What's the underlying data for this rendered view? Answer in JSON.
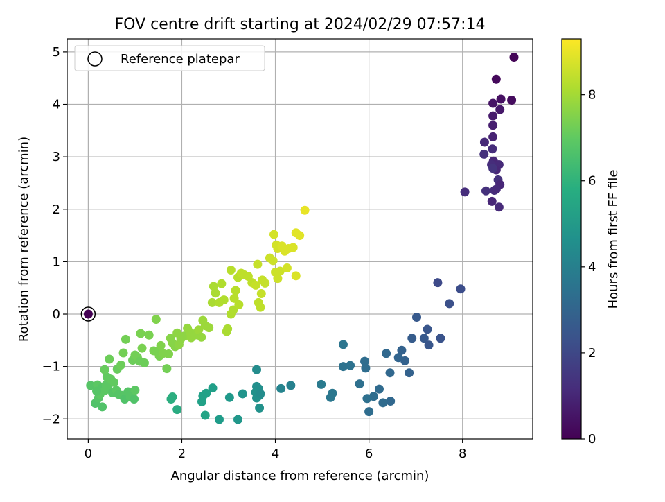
{
  "chart_data": {
    "type": "scatter",
    "title": "FOV centre drift starting at 2024/02/29 07:57:14",
    "xlabel": "Angular distance from reference (arcmin)",
    "ylabel": "Rotation from reference (arcmin)",
    "xlim": [
      -0.45,
      9.5
    ],
    "ylim": [
      -2.38,
      5.25
    ],
    "xticks": [
      0,
      2,
      4,
      6,
      8
    ],
    "yticks": [
      -2,
      -1,
      0,
      1,
      2,
      3,
      4,
      5
    ],
    "grid": true,
    "legend": {
      "placement": "top-left",
      "entries": [
        "Reference platepar"
      ]
    },
    "colorbar": {
      "label": "Hours from first FF file",
      "min": 0,
      "max": 9.3,
      "ticks": [
        0,
        2,
        4,
        6,
        8
      ],
      "colormap": "viridis"
    },
    "reference_point": {
      "x": 0,
      "y": 0,
      "c": 0
    },
    "points": [
      {
        "x": 9.1,
        "y": 4.9,
        "c": 0.1
      },
      {
        "x": 8.72,
        "y": 4.48,
        "c": 0.2
      },
      {
        "x": 8.82,
        "y": 4.1,
        "c": 0.4
      },
      {
        "x": 9.05,
        "y": 4.08,
        "c": 0.3
      },
      {
        "x": 8.65,
        "y": 4.02,
        "c": 0.5
      },
      {
        "x": 8.8,
        "y": 3.9,
        "c": 0.6
      },
      {
        "x": 8.65,
        "y": 3.78,
        "c": 0.7
      },
      {
        "x": 8.65,
        "y": 3.6,
        "c": 0.8
      },
      {
        "x": 8.65,
        "y": 3.38,
        "c": 0.9
      },
      {
        "x": 8.47,
        "y": 3.28,
        "c": 1.1
      },
      {
        "x": 8.64,
        "y": 3.15,
        "c": 1.2
      },
      {
        "x": 8.46,
        "y": 3.05,
        "c": 1.3
      },
      {
        "x": 8.66,
        "y": 2.92,
        "c": 1.0
      },
      {
        "x": 8.62,
        "y": 2.85,
        "c": 1.2
      },
      {
        "x": 8.78,
        "y": 2.85,
        "c": 1.1
      },
      {
        "x": 8.72,
        "y": 2.75,
        "c": 1.0
      },
      {
        "x": 8.65,
        "y": 2.78,
        "c": 1.4
      },
      {
        "x": 8.76,
        "y": 2.56,
        "c": 1.3
      },
      {
        "x": 8.8,
        "y": 2.47,
        "c": 1.0
      },
      {
        "x": 8.68,
        "y": 2.36,
        "c": 1.2
      },
      {
        "x": 8.5,
        "y": 2.35,
        "c": 1.3
      },
      {
        "x": 8.72,
        "y": 2.38,
        "c": 1.1
      },
      {
        "x": 8.05,
        "y": 2.33,
        "c": 1.2
      },
      {
        "x": 8.63,
        "y": 2.15,
        "c": 1.0
      },
      {
        "x": 8.78,
        "y": 2.04,
        "c": 1.1
      },
      {
        "x": 7.47,
        "y": 0.6,
        "c": 2.1
      },
      {
        "x": 7.96,
        "y": 0.48,
        "c": 2.2
      },
      {
        "x": 7.72,
        "y": 0.2,
        "c": 2.3
      },
      {
        "x": 7.02,
        "y": -0.06,
        "c": 2.6
      },
      {
        "x": 7.25,
        "y": -0.29,
        "c": 2.5
      },
      {
        "x": 6.92,
        "y": -0.46,
        "c": 2.7
      },
      {
        "x": 7.18,
        "y": -0.46,
        "c": 2.6
      },
      {
        "x": 7.53,
        "y": -0.46,
        "c": 2.4
      },
      {
        "x": 7.28,
        "y": -0.59,
        "c": 2.5
      },
      {
        "x": 6.7,
        "y": -0.69,
        "c": 2.9
      },
      {
        "x": 6.37,
        "y": -0.75,
        "c": 3.1
      },
      {
        "x": 6.63,
        "y": -0.83,
        "c": 3.0
      },
      {
        "x": 6.77,
        "y": -0.89,
        "c": 2.9
      },
      {
        "x": 5.91,
        "y": -0.9,
        "c": 3.3
      },
      {
        "x": 5.45,
        "y": -0.58,
        "c": 3.6
      },
      {
        "x": 5.6,
        "y": -0.98,
        "c": 3.5
      },
      {
        "x": 5.45,
        "y": -1.0,
        "c": 3.5
      },
      {
        "x": 5.93,
        "y": -1.03,
        "c": 3.3
      },
      {
        "x": 6.45,
        "y": -1.12,
        "c": 3.1
      },
      {
        "x": 6.86,
        "y": -1.12,
        "c": 2.9
      },
      {
        "x": 5.8,
        "y": -1.33,
        "c": 3.4
      },
      {
        "x": 6.22,
        "y": -1.43,
        "c": 3.2
      },
      {
        "x": 4.98,
        "y": -1.34,
        "c": 3.8
      },
      {
        "x": 5.22,
        "y": -1.51,
        "c": 3.7
      },
      {
        "x": 5.18,
        "y": -1.59,
        "c": 3.7
      },
      {
        "x": 6.1,
        "y": -1.57,
        "c": 3.3
      },
      {
        "x": 5.96,
        "y": -1.61,
        "c": 3.4
      },
      {
        "x": 6.46,
        "y": -1.66,
        "c": 3.1
      },
      {
        "x": 6.3,
        "y": -1.69,
        "c": 3.2
      },
      {
        "x": 6.0,
        "y": -1.86,
        "c": 3.3
      },
      {
        "x": 4.33,
        "y": -1.36,
        "c": 4.1
      },
      {
        "x": 4.12,
        "y": -1.42,
        "c": 4.2
      },
      {
        "x": 3.6,
        "y": -1.06,
        "c": 4.5
      },
      {
        "x": 3.6,
        "y": -1.38,
        "c": 4.6
      },
      {
        "x": 3.64,
        "y": -1.42,
        "c": 4.6
      },
      {
        "x": 3.58,
        "y": -1.49,
        "c": 4.7
      },
      {
        "x": 3.66,
        "y": -1.55,
        "c": 4.6
      },
      {
        "x": 3.6,
        "y": -1.6,
        "c": 4.7
      },
      {
        "x": 3.68,
        "y": -1.52,
        "c": 4.5
      },
      {
        "x": 3.3,
        "y": -1.52,
        "c": 4.8
      },
      {
        "x": 3.66,
        "y": -1.79,
        "c": 4.7
      },
      {
        "x": 3.02,
        "y": -1.59,
        "c": 5.0
      },
      {
        "x": 2.66,
        "y": -1.41,
        "c": 5.2
      },
      {
        "x": 2.52,
        "y": -1.51,
        "c": 5.3
      },
      {
        "x": 2.45,
        "y": -1.56,
        "c": 5.3
      },
      {
        "x": 2.43,
        "y": -1.67,
        "c": 5.3
      },
      {
        "x": 2.5,
        "y": -1.93,
        "c": 5.4
      },
      {
        "x": 2.8,
        "y": -2.01,
        "c": 5.1
      },
      {
        "x": 3.2,
        "y": -2.01,
        "c": 4.9
      },
      {
        "x": 1.9,
        "y": -1.82,
        "c": 5.7
      },
      {
        "x": 1.8,
        "y": -1.58,
        "c": 5.8
      },
      {
        "x": 1.77,
        "y": -1.62,
        "c": 5.8
      },
      {
        "x": 0.05,
        "y": -1.36,
        "c": 6.8
      },
      {
        "x": 0.15,
        "y": -1.7,
        "c": 6.7
      },
      {
        "x": 0.22,
        "y": -1.6,
        "c": 6.8
      },
      {
        "x": 0.3,
        "y": -1.77,
        "c": 6.7
      },
      {
        "x": 0.2,
        "y": -1.35,
        "c": 6.9
      },
      {
        "x": 0.3,
        "y": -1.4,
        "c": 6.8
      },
      {
        "x": 0.42,
        "y": -1.38,
        "c": 6.9
      },
      {
        "x": 0.35,
        "y": -1.46,
        "c": 6.9
      },
      {
        "x": 0.52,
        "y": -1.5,
        "c": 6.8
      },
      {
        "x": 0.6,
        "y": -1.45,
        "c": 6.9
      },
      {
        "x": 0.65,
        "y": -1.53,
        "c": 6.8
      },
      {
        "x": 0.72,
        "y": -1.55,
        "c": 6.8
      },
      {
        "x": 0.78,
        "y": -1.62,
        "c": 6.7
      },
      {
        "x": 0.85,
        "y": -1.48,
        "c": 6.8
      },
      {
        "x": 0.9,
        "y": -1.58,
        "c": 6.8
      },
      {
        "x": 0.98,
        "y": -1.62,
        "c": 6.7
      },
      {
        "x": 1.0,
        "y": -1.45,
        "c": 6.9
      },
      {
        "x": 0.25,
        "y": -1.53,
        "c": 6.9
      },
      {
        "x": 0.18,
        "y": -1.47,
        "c": 6.8
      },
      {
        "x": 0.38,
        "y": -1.35,
        "c": 6.9
      },
      {
        "x": 0.4,
        "y": -1.2,
        "c": 7.0
      },
      {
        "x": 0.48,
        "y": -1.24,
        "c": 7.0
      },
      {
        "x": 0.55,
        "y": -1.3,
        "c": 7.0
      },
      {
        "x": 0.35,
        "y": -1.06,
        "c": 7.1
      },
      {
        "x": 0.45,
        "y": -0.86,
        "c": 7.2
      },
      {
        "x": 0.62,
        "y": -1.05,
        "c": 7.1
      },
      {
        "x": 0.7,
        "y": -0.97,
        "c": 7.2
      },
      {
        "x": 0.75,
        "y": -0.74,
        "c": 7.3
      },
      {
        "x": 0.8,
        "y": -0.48,
        "c": 7.3
      },
      {
        "x": 0.95,
        "y": -0.88,
        "c": 7.2
      },
      {
        "x": 1.0,
        "y": -0.78,
        "c": 7.3
      },
      {
        "x": 1.05,
        "y": -0.82,
        "c": 7.3
      },
      {
        "x": 1.1,
        "y": -0.9,
        "c": 7.2
      },
      {
        "x": 1.15,
        "y": -0.65,
        "c": 7.4
      },
      {
        "x": 1.12,
        "y": -0.37,
        "c": 7.4
      },
      {
        "x": 1.2,
        "y": -0.93,
        "c": 7.2
      },
      {
        "x": 1.3,
        "y": -0.4,
        "c": 7.4
      },
      {
        "x": 1.45,
        "y": -0.1,
        "c": 7.5
      },
      {
        "x": 1.48,
        "y": -0.72,
        "c": 7.4
      },
      {
        "x": 1.52,
        "y": -0.8,
        "c": 7.4
      },
      {
        "x": 1.55,
        "y": -0.6,
        "c": 7.5
      },
      {
        "x": 1.6,
        "y": -0.75,
        "c": 7.5
      },
      {
        "x": 1.68,
        "y": -1.04,
        "c": 7.3
      },
      {
        "x": 1.72,
        "y": -0.76,
        "c": 7.5
      },
      {
        "x": 1.76,
        "y": -0.46,
        "c": 7.6
      },
      {
        "x": 1.8,
        "y": -0.55,
        "c": 7.6
      },
      {
        "x": 1.86,
        "y": -0.62,
        "c": 7.6
      },
      {
        "x": 1.9,
        "y": -0.36,
        "c": 7.7
      },
      {
        "x": 1.94,
        "y": -0.58,
        "c": 7.7
      },
      {
        "x": 1.98,
        "y": -0.47,
        "c": 7.7
      },
      {
        "x": 2.05,
        "y": -0.42,
        "c": 7.7
      },
      {
        "x": 2.12,
        "y": -0.27,
        "c": 7.8
      },
      {
        "x": 2.18,
        "y": -0.35,
        "c": 7.8
      },
      {
        "x": 2.2,
        "y": -0.45,
        "c": 7.8
      },
      {
        "x": 2.28,
        "y": -0.4,
        "c": 7.8
      },
      {
        "x": 2.32,
        "y": -0.36,
        "c": 7.8
      },
      {
        "x": 2.36,
        "y": -0.3,
        "c": 7.9
      },
      {
        "x": 2.42,
        "y": -0.44,
        "c": 7.8
      },
      {
        "x": 2.45,
        "y": -0.12,
        "c": 7.9
      },
      {
        "x": 2.5,
        "y": -0.22,
        "c": 7.9
      },
      {
        "x": 2.58,
        "y": -0.26,
        "c": 7.9
      },
      {
        "x": 1.4,
        "y": -0.7,
        "c": 7.4
      },
      {
        "x": 2.65,
        "y": 0.22,
        "c": 8.1
      },
      {
        "x": 2.72,
        "y": 0.4,
        "c": 8.1
      },
      {
        "x": 2.68,
        "y": 0.53,
        "c": 8.1
      },
      {
        "x": 2.8,
        "y": 0.22,
        "c": 8.2
      },
      {
        "x": 2.85,
        "y": 0.58,
        "c": 8.2
      },
      {
        "x": 2.9,
        "y": 0.27,
        "c": 8.2
      },
      {
        "x": 2.96,
        "y": -0.33,
        "c": 8.1
      },
      {
        "x": 2.98,
        "y": -0.28,
        "c": 8.1
      },
      {
        "x": 3.05,
        "y": 0.0,
        "c": 8.2
      },
      {
        "x": 3.05,
        "y": 0.84,
        "c": 8.3
      },
      {
        "x": 3.1,
        "y": 0.08,
        "c": 8.2
      },
      {
        "x": 3.12,
        "y": 0.3,
        "c": 8.3
      },
      {
        "x": 3.15,
        "y": 0.45,
        "c": 8.3
      },
      {
        "x": 3.2,
        "y": 0.7,
        "c": 8.3
      },
      {
        "x": 3.22,
        "y": 0.18,
        "c": 8.3
      },
      {
        "x": 3.27,
        "y": 0.78,
        "c": 8.4
      },
      {
        "x": 3.33,
        "y": 0.75,
        "c": 8.4
      },
      {
        "x": 3.42,
        "y": 0.72,
        "c": 8.4
      },
      {
        "x": 3.5,
        "y": 0.6,
        "c": 8.4
      },
      {
        "x": 3.58,
        "y": 0.55,
        "c": 8.5
      },
      {
        "x": 3.62,
        "y": 0.95,
        "c": 8.5
      },
      {
        "x": 3.64,
        "y": 0.22,
        "c": 8.4
      },
      {
        "x": 3.68,
        "y": 0.13,
        "c": 8.4
      },
      {
        "x": 3.7,
        "y": 0.39,
        "c": 8.5
      },
      {
        "x": 3.72,
        "y": 0.65,
        "c": 8.5
      },
      {
        "x": 3.78,
        "y": 0.59,
        "c": 8.5
      },
      {
        "x": 3.88,
        "y": 1.07,
        "c": 8.6
      },
      {
        "x": 3.95,
        "y": 1.02,
        "c": 8.6
      },
      {
        "x": 3.97,
        "y": 1.52,
        "c": 8.7
      },
      {
        "x": 4.0,
        "y": 0.8,
        "c": 8.6
      },
      {
        "x": 4.02,
        "y": 1.32,
        "c": 8.7
      },
      {
        "x": 4.05,
        "y": 1.25,
        "c": 8.7
      },
      {
        "x": 4.05,
        "y": 0.68,
        "c": 8.6
      },
      {
        "x": 4.1,
        "y": 0.82,
        "c": 8.6
      },
      {
        "x": 4.14,
        "y": 1.3,
        "c": 8.8
      },
      {
        "x": 4.2,
        "y": 1.2,
        "c": 8.8
      },
      {
        "x": 4.25,
        "y": 0.88,
        "c": 8.7
      },
      {
        "x": 4.28,
        "y": 1.25,
        "c": 8.8
      },
      {
        "x": 4.38,
        "y": 1.27,
        "c": 8.8
      },
      {
        "x": 4.44,
        "y": 1.55,
        "c": 8.9
      },
      {
        "x": 4.44,
        "y": 0.73,
        "c": 8.8
      },
      {
        "x": 4.52,
        "y": 1.5,
        "c": 8.9
      },
      {
        "x": 4.63,
        "y": 1.98,
        "c": 9.0
      }
    ]
  }
}
